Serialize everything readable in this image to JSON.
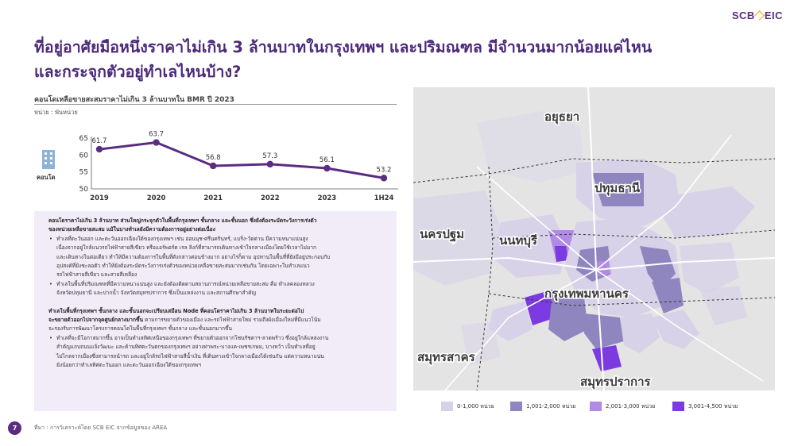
{
  "brand": {
    "name_left": "SCB",
    "name_right": "EIC"
  },
  "title": {
    "line1": "ที่อยู่อาศัยมือหนึ่งราคาไม่เกิน 3 ล้านบาทในกรุงเทพฯ และปริมณฑล มีจำนวนมากน้อยแค่ไหน",
    "line2": "และกระจุกตัวอยู่ทำเลไหนบ้าง?"
  },
  "chart_section": {
    "title": "คอนโดเหลือขายสะสมราคาไม่เกิน 3 ล้านบาทใน BMR ปี 2023",
    "unit": "หน่วย : พันหน่วย",
    "icon_label": "คอนโด"
  },
  "chart_data": {
    "type": "line",
    "categories": [
      "2019",
      "2020",
      "2021",
      "2022",
      "2023",
      "1H24"
    ],
    "values": [
      61.7,
      63.7,
      56.8,
      57.3,
      56.1,
      53.2
    ],
    "data_labels": [
      "61.7",
      "63.7",
      "56.8",
      "57.3",
      "56.1",
      "53.2"
    ],
    "yticks": [
      "65",
      "60",
      "55",
      "50"
    ],
    "ylim": [
      50,
      65
    ],
    "color": "#5a2d82"
  },
  "textbox": {
    "p1_bold": "คอนโดราคาไม่เกิน 3 ล้านบาท ส่วนใหญ่กระจุกตัวในพื้นที่กรุงเทพฯ ชั้นกลาง และชั้นนอก ซึ่งยังต้องระมัดระวังการเร่งตัว",
    "p1_bold2": "ของหน่วยเหลือขายสะสม แม้ในบางทำเลยังมีความต้องการอยู่อย่างต่อเนื่อง",
    "b1_l1": "ทำเลที่ตะวันออก และตะวันออกเฉียงใต้ของกรุงเทพฯ เช่น อ่อนนุช-ศรีนครินทร์, แบริ่ง-วัดด่าน มีความหนาแน่นสูง",
    "b1_l2": "เนื่องจากอยู่ใกล้แนวรถไฟฟ้าสายสีเขียว หรือแอร์พอร์ต เรล ลิงก์ที่สามารถเดินทางเข้าใจกลางเมืองโดยใช้เวลาไม่มาก",
    "b1_l3": "และเดินทางในต่อเดียว ทำให้มีความต้องการในพื้นที่ดังกล่าวค่อนข้างมาก อย่างไรก็ตาม อุปทานในพื้นที่ที่ยังมีอยู่ประกอบกับ",
    "b1_l4": "อุปสงค์ที่ยังชะลอตัว ทำให้ยังต้องระมัดระวังการเร่งตัวของหน่วยเหลือขายสะสมมากเช่นกัน โดยเฉพาะในทำเลแนว",
    "b1_l5": "รถไฟฟ้าสายสีเขียว และสายสีเหลือง",
    "b2_l1": "ทำเลในพื้นที่ปริมณฑลที่มีความหนาแน่นสูง และยังต้องติดตามสถานการณ์หน่วยเหลือขายสะสม คือ ทำเลคลองหลวง",
    "b2_l2": "จังหวัดปทุมธานี และปากน้ำ จังหวัดสมุทรปราการ ซึ่งเป็นแหล่งงาน และสถานศึกษาสำคัญ",
    "p2_bold": "ทำเลในพื้นที่กรุงเทพฯ ชั้นกลาง และชั้นนอกจะเปรียบเสมือน Node ที่คอนโดราคาไม่เกิน 3 ล้านบาทในระยะต่อไป",
    "p2_l2_bold": "จะขยายตัวออกไปจากจุดศูนย์กลางมากขึ้น",
    "p2_l2": " ตามการขยายตัวของเมือง และรถไฟฟ้าสายใหม่ รวมถึงผังเมืองใหม่ที่มีแนวโน้ม",
    "p2_l3": "จะรองรับการพัฒนาโครงการคอนโดในพื้นที่กรุงเทพฯ ชั้นกลาง และชั้นนอกมากขึ้น",
    "b3_l1": "ทำเลที่จะมีโอกาสมากขึ้น อาจเป็นทำเลทิศเหนือของกรุงเทพฯ ที่ขยายตัวออกจากโซนรัชดาฯ-ลาดพร้าว ซึ่งอยู่ใกล้แหล่งงาน",
    "b3_l2": "สำคัญแถบถนนแจ้งวัฒนะ และด้านทิศตะวันตกของกรุงเทพฯ อย่างท่าพระ-บางแค-เพชรเกษม, บางหว้า เป็นทำเลที่อยู่",
    "b3_l3": "ไม่ไกลจากเมืองซึ่งสามารถนำรถ และอยู่ใกล้รถไฟฟ้าสายสีน้ำเงิน ที่เดินทางเข้าใจกลางเมืองได้เช่นกัน แต่ความหนาแน่น",
    "b3_l4": "ยังน้อยกว่าทำเลทิศตะวันออก และตะวันออกเฉียงใต้ของกรุงเทพฯ"
  },
  "map": {
    "labels": {
      "ayutthaya": "อยุธยา",
      "pathumthani": "ปทุมธานี",
      "nakhonpathom": "นครปฐม",
      "nonthaburi": "นนทบุรี",
      "bangkok": "กรุงเทพมหานคร",
      "samutsakhon": "สมุทรสาคร",
      "samutprakan": "สมุทรปราการ"
    },
    "colors": {
      "c1": "#d7d2e8",
      "c2": "#8f86bf",
      "c3": "#b18ae6",
      "c4": "#7b3be0",
      "bg": "#e4e4e4",
      "road": "#ffffff"
    }
  },
  "legend": [
    {
      "label": "0-1,000 หน่วย",
      "color": "#d7d2e8"
    },
    {
      "label": "1,001-2,000 หน่วย",
      "color": "#8f86bf"
    },
    {
      "label": "2,001-3,000 หน่วย",
      "color": "#b18ae6"
    },
    {
      "label": "3,001-4,500 หน่วย",
      "color": "#7b3be0"
    }
  ],
  "footer": {
    "page": "7",
    "source": "ที่มา : การวิเคราะห์โดย SCB EIC จากข้อมูลของ AREA"
  }
}
